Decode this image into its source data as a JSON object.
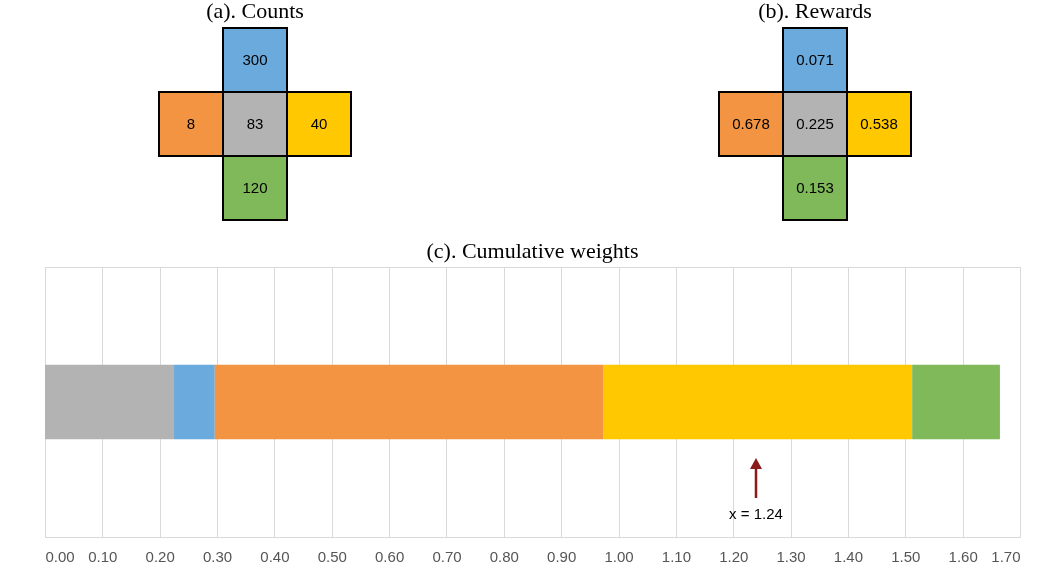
{
  "chart_data": [
    {
      "type": "other",
      "title": "(a). Counts",
      "categories": [
        null,
        null,
        null,
        null,
        null
      ],
      "values": [
        300,
        8,
        83,
        40,
        120
      ],
      "colors": [
        "#6aaadc",
        "#f39443",
        "#b3b3b3",
        "#ffc800",
        "#7fb95a"
      ],
      "data_labels": true
    },
    {
      "type": "other",
      "title": "(b). Rewards",
      "categories": [
        null,
        null,
        null,
        null,
        null
      ],
      "values": [
        0.071,
        0.678,
        0.225,
        0.538,
        0.153
      ],
      "colors": [
        "#6aaadc",
        "#f39443",
        "#b3b3b3",
        "#ffc800",
        "#7fb95a"
      ],
      "data_labels": true
    },
    {
      "type": "bar",
      "title": "(c). Cumulative weights",
      "orientation": "horizontal",
      "stacked": true,
      "categories": [
        null
      ],
      "series": [
        {
          "color": "#b3b3b3",
          "values": [
            0.225
          ]
        },
        {
          "color": "#6aaadc",
          "values": [
            0.071
          ]
        },
        {
          "color": "#f39443",
          "values": [
            0.678
          ]
        },
        {
          "color": "#ffc800",
          "values": [
            0.538
          ]
        },
        {
          "color": "#7fb95a",
          "values": [
            0.153
          ]
        }
      ],
      "xlim": [
        0,
        1.7
      ],
      "xticks": [
        {
          "value": 0,
          "label": "0.00"
        },
        {
          "value": 0.1,
          "label": "0.10"
        },
        {
          "value": 0.2,
          "label": "0.20"
        },
        {
          "value": 0.3,
          "label": "0.30"
        },
        {
          "value": 0.4,
          "label": "0.40"
        },
        {
          "value": 0.5,
          "label": "0.50"
        },
        {
          "value": 0.6,
          "label": "0.60"
        },
        {
          "value": 0.7,
          "label": "0.70"
        },
        {
          "value": 0.8,
          "label": "0.80"
        },
        {
          "value": 0.9,
          "label": "0.90"
        },
        {
          "value": 1,
          "label": "1.00"
        },
        {
          "value": 1.1,
          "label": "1.10"
        },
        {
          "value": 1.2,
          "label": "1.20"
        },
        {
          "value": 1.3,
          "label": "1.30"
        },
        {
          "value": 1.4,
          "label": "1.40"
        },
        {
          "value": 1.5,
          "label": "1.50"
        },
        {
          "value": 1.6,
          "label": "1.60"
        },
        {
          "value": 1.7,
          "label": "1.70"
        }
      ],
      "grid": "x",
      "annotations": [
        "x = 1.24"
      ]
    }
  ]
}
